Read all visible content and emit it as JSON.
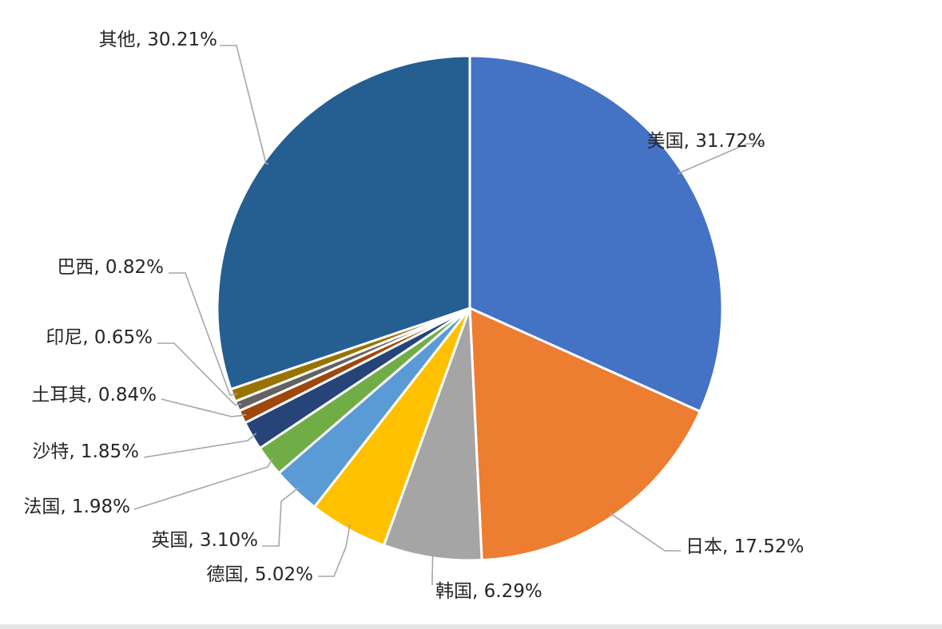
{
  "chart_data": {
    "type": "pie",
    "title": "",
    "slices": [
      {
        "label": "美国, 31.72%",
        "name": "美国",
        "value": 31.72,
        "color": "#4472c4"
      },
      {
        "label": "日本, 17.52%",
        "name": "日本",
        "value": 17.52,
        "color": "#ed7d31"
      },
      {
        "label": "韩国, 6.29%",
        "name": "韩国",
        "value": 6.29,
        "color": "#a5a5a5"
      },
      {
        "label": "德国, 5.02%",
        "name": "德国",
        "value": 5.02,
        "color": "#ffc000"
      },
      {
        "label": "英国, 3.10%",
        "name": "英国",
        "value": 3.1,
        "color": "#5b9bd5"
      },
      {
        "label": "法国, 1.98%",
        "name": "法国",
        "value": 1.98,
        "color": "#70ad47"
      },
      {
        "label": "沙特, 1.85%",
        "name": "沙特",
        "value": 1.85,
        "color": "#264478"
      },
      {
        "label": "土耳其, 0.84%",
        "name": "土耳其",
        "value": 0.84,
        "color": "#9e480e"
      },
      {
        "label": "印尼, 0.65%",
        "name": "印尼",
        "value": 0.65,
        "color": "#636363"
      },
      {
        "label": "巴西, 0.82%",
        "name": "巴西",
        "value": 0.82,
        "color": "#997300"
      },
      {
        "label": "其他, 30.21%",
        "name": "其他",
        "value": 30.21,
        "color": "#255e91"
      }
    ],
    "start_angle_deg": 0,
    "direction": "clockwise",
    "legend": "none"
  }
}
